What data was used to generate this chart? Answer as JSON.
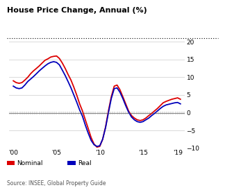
{
  "title": "House Price Change, Annual (%)",
  "source": "Source: INSEE, Global Property Guide",
  "legend_nominal": "Nominal",
  "legend_real": "Real",
  "nominal_color": "#dd0000",
  "real_color": "#0000bb",
  "background_color": "#ffffff",
  "ylim": [
    -10,
    20
  ],
  "yticks": [
    -10,
    -5,
    0,
    5,
    10,
    15,
    20
  ],
  "xtick_labels": [
    "'00",
    "'05",
    "'10",
    "'15",
    "'19"
  ],
  "xtick_positions": [
    2000,
    2005,
    2010,
    2015,
    2019
  ],
  "xlim": [
    1999.5,
    2019.8
  ],
  "years": [
    2000,
    2000.33,
    2000.67,
    2001,
    2001.33,
    2001.67,
    2002,
    2002.33,
    2002.67,
    2003,
    2003.33,
    2003.67,
    2004,
    2004.33,
    2004.67,
    2005,
    2005.33,
    2005.67,
    2006,
    2006.33,
    2006.67,
    2007,
    2007.33,
    2007.67,
    2008,
    2008.33,
    2008.67,
    2009,
    2009.33,
    2009.67,
    2010,
    2010.33,
    2010.67,
    2011,
    2011.33,
    2011.67,
    2012,
    2012.33,
    2012.67,
    2013,
    2013.33,
    2013.67,
    2014,
    2014.33,
    2014.67,
    2015,
    2015.33,
    2015.67,
    2016,
    2016.33,
    2016.67,
    2017,
    2017.33,
    2017.67,
    2018,
    2018.33,
    2018.67,
    2019,
    2019.33
  ],
  "nominal": [
    9.0,
    8.5,
    8.3,
    8.5,
    9.2,
    10.0,
    11.0,
    11.8,
    12.5,
    13.2,
    14.0,
    14.8,
    15.2,
    15.7,
    15.9,
    16.0,
    15.3,
    14.0,
    12.5,
    10.8,
    9.2,
    7.2,
    5.0,
    2.5,
    0.5,
    -2.0,
    -4.5,
    -7.0,
    -8.8,
    -9.7,
    -9.5,
    -7.5,
    -4.0,
    0.5,
    4.5,
    7.5,
    7.8,
    6.5,
    4.5,
    2.5,
    0.5,
    -0.8,
    -1.5,
    -2.0,
    -2.2,
    -2.0,
    -1.5,
    -0.8,
    -0.2,
    0.5,
    1.2,
    2.0,
    2.8,
    3.2,
    3.5,
    3.8,
    4.0,
    4.2,
    3.8
  ],
  "real": [
    7.5,
    7.0,
    6.8,
    7.0,
    7.8,
    8.8,
    9.5,
    10.2,
    11.0,
    11.8,
    12.5,
    13.2,
    13.8,
    14.2,
    14.4,
    14.2,
    13.5,
    12.0,
    10.5,
    8.8,
    7.0,
    5.0,
    3.0,
    0.8,
    -1.0,
    -3.5,
    -5.8,
    -7.8,
    -9.0,
    -9.5,
    -9.3,
    -7.5,
    -4.2,
    0.0,
    4.0,
    6.8,
    7.0,
    5.8,
    4.0,
    2.0,
    0.2,
    -1.2,
    -2.0,
    -2.5,
    -2.7,
    -2.5,
    -2.0,
    -1.5,
    -0.8,
    -0.2,
    0.5,
    1.2,
    1.8,
    2.2,
    2.4,
    2.6,
    2.8,
    2.9,
    2.5
  ]
}
